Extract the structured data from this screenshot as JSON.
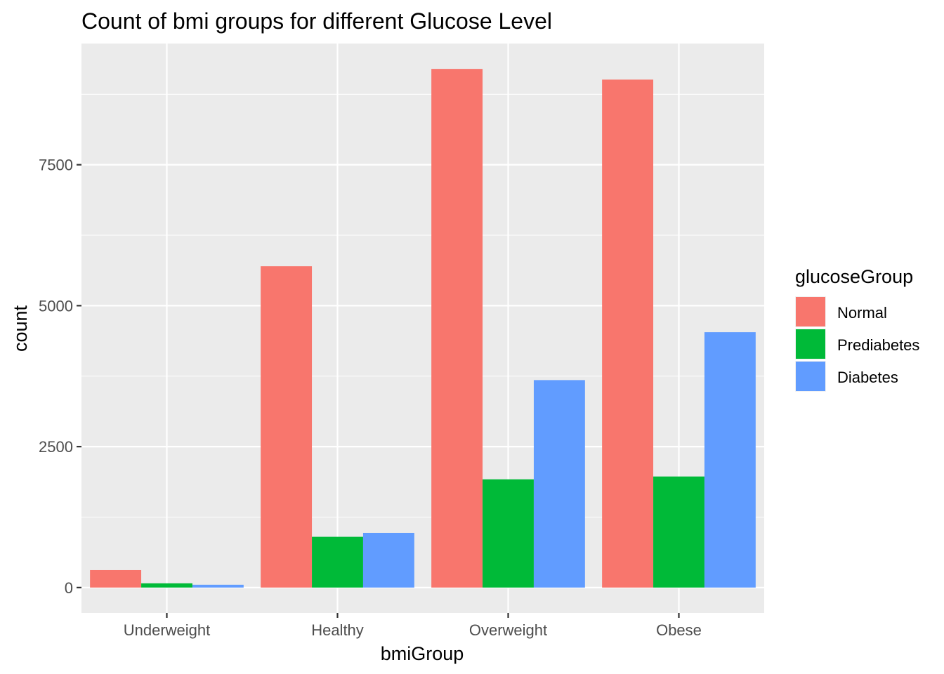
{
  "chart_data": {
    "type": "bar",
    "title": "Count of bmi groups for different Glucose Level",
    "xlabel": "bmiGroup",
    "ylabel": "count",
    "categories": [
      "Underweight",
      "Healthy",
      "Overweight",
      "Obese"
    ],
    "series": [
      {
        "name": "Normal",
        "color": "#F8766D",
        "values": [
          310,
          5700,
          9200,
          9010
        ]
      },
      {
        "name": "Prediabetes",
        "color": "#00BA38",
        "values": [
          75,
          900,
          1920,
          1970
        ]
      },
      {
        "name": "Diabetes",
        "color": "#619CFF",
        "values": [
          50,
          970,
          3680,
          4530
        ]
      }
    ],
    "ylim": [
      -450,
      9650
    ],
    "yticks": [
      0,
      2500,
      5000,
      7500
    ],
    "ytick_labels": [
      "0",
      "2500",
      "5000",
      "7500"
    ],
    "grid": true,
    "panel_background": "#EBEBEB",
    "legend": {
      "title": "glucoseGroup",
      "position": "right"
    }
  }
}
